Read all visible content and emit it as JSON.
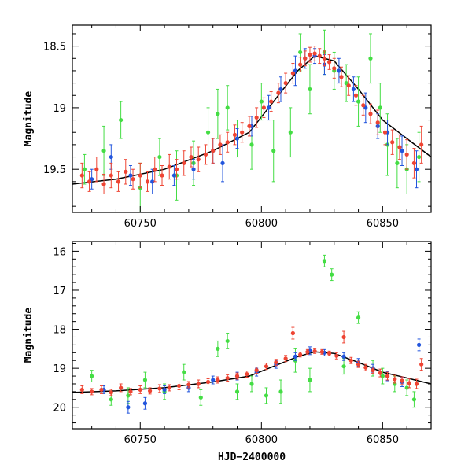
{
  "chart_data": [
    {
      "id": "top",
      "type": "scatter",
      "xlabel": "",
      "ylabel": "Magnitude",
      "xlim": [
        60722,
        60870
      ],
      "ylim": [
        19.85,
        18.33
      ],
      "y_inverted": true,
      "x_ticks": [
        60750,
        60800,
        60850
      ],
      "x_tick_labels": [
        "60750",
        "60800",
        "60850"
      ],
      "y_ticks": [
        18.5,
        19,
        19.5
      ],
      "y_tick_labels": [
        "18.5",
        "19",
        "19.5"
      ],
      "grid": false,
      "colors": {
        "green": "#44dd44",
        "blue": "#2255dd",
        "red": "#ee4433",
        "model": "#000000"
      },
      "model_curve": {
        "x": [
          60722,
          60740,
          60760,
          60780,
          60795,
          60805,
          60815,
          60822,
          60830,
          60840,
          60850,
          60860,
          60870
        ],
        "y": [
          19.62,
          19.58,
          19.5,
          19.35,
          19.2,
          18.95,
          18.7,
          18.58,
          18.62,
          18.85,
          19.1,
          19.25,
          19.4
        ]
      },
      "series": [
        {
          "color": "green",
          "points": [
            [
              60727,
              19.5,
              0.12
            ],
            [
              60735,
              19.35,
              0.2
            ],
            [
              60742,
              19.1,
              0.15
            ],
            [
              60750,
              19.65,
              0.2
            ],
            [
              60758,
              19.4,
              0.15
            ],
            [
              60765,
              19.55,
              0.2
            ],
            [
              60772,
              19.45,
              0.18
            ],
            [
              60778,
              19.2,
              0.2
            ],
            [
              60782,
              19.05,
              0.2
            ],
            [
              60786,
              19.0,
              0.18
            ],
            [
              60790,
              19.25,
              0.15
            ],
            [
              60796,
              19.3,
              0.2
            ],
            [
              60800,
              18.95,
              0.15
            ],
            [
              60805,
              19.35,
              0.25
            ],
            [
              60812,
              19.2,
              0.2
            ],
            [
              60816,
              18.55,
              0.15
            ],
            [
              60820,
              18.85,
              0.2
            ],
            [
              60826,
              18.55,
              0.18
            ],
            [
              60830,
              18.7,
              0.15
            ],
            [
              60835,
              18.8,
              0.15
            ],
            [
              60840,
              18.95,
              0.2
            ],
            [
              60845,
              18.6,
              0.2
            ],
            [
              60849,
              19.0,
              0.2
            ],
            [
              60852,
              19.3,
              0.25
            ],
            [
              60856,
              19.45,
              0.2
            ],
            [
              60860,
              19.5,
              0.2
            ],
            [
              60865,
              19.4,
              0.2
            ]
          ]
        },
        {
          "color": "blue",
          "points": [
            [
              60730,
              19.58,
              0.08
            ],
            [
              60738,
              19.4,
              0.1
            ],
            [
              60746,
              19.55,
              0.08
            ],
            [
              60755,
              19.6,
              0.1
            ],
            [
              60764,
              19.55,
              0.08
            ],
            [
              60772,
              19.5,
              0.08
            ],
            [
              60780,
              19.35,
              0.1
            ],
            [
              60784,
              19.45,
              0.15
            ],
            [
              60790,
              19.25,
              0.08
            ],
            [
              60796,
              19.15,
              0.08
            ],
            [
              60803,
              19.0,
              0.1
            ],
            [
              60808,
              18.85,
              0.1
            ],
            [
              60814,
              18.7,
              0.12
            ],
            [
              60818,
              18.6,
              0.08
            ],
            [
              60822,
              18.58,
              0.06
            ],
            [
              60826,
              18.65,
              0.08
            ],
            [
              60832,
              18.7,
              0.1
            ],
            [
              60838,
              18.85,
              0.1
            ],
            [
              60843,
              19.0,
              0.12
            ],
            [
              60848,
              19.15,
              0.1
            ],
            [
              60852,
              19.2,
              0.1
            ],
            [
              60858,
              19.35,
              0.12
            ],
            [
              60864,
              19.5,
              0.15
            ]
          ]
        },
        {
          "color": "red",
          "points": [
            [
              60726,
              19.55,
              0.1
            ],
            [
              60729,
              19.6,
              0.08
            ],
            [
              60732,
              19.5,
              0.1
            ],
            [
              60735,
              19.62,
              0.08
            ],
            [
              60738,
              19.55,
              0.1
            ],
            [
              60741,
              19.6,
              0.08
            ],
            [
              60744,
              19.52,
              0.1
            ],
            [
              60747,
              19.58,
              0.08
            ],
            [
              60750,
              19.55,
              0.1
            ],
            [
              60753,
              19.6,
              0.08
            ],
            [
              60756,
              19.5,
              0.1
            ],
            [
              60759,
              19.55,
              0.08
            ],
            [
              60762,
              19.48,
              0.1
            ],
            [
              60765,
              19.5,
              0.08
            ],
            [
              60768,
              19.45,
              0.1
            ],
            [
              60771,
              19.4,
              0.08
            ],
            [
              60774,
              19.42,
              0.1
            ],
            [
              60777,
              19.38,
              0.08
            ],
            [
              60780,
              19.35,
              0.1
            ],
            [
              60783,
              19.3,
              0.08
            ],
            [
              60786,
              19.28,
              0.08
            ],
            [
              60789,
              19.22,
              0.08
            ],
            [
              60792,
              19.2,
              0.08
            ],
            [
              60795,
              19.15,
              0.08
            ],
            [
              60798,
              19.08,
              0.08
            ],
            [
              60801,
              19.0,
              0.08
            ],
            [
              60804,
              18.95,
              0.08
            ],
            [
              60807,
              18.88,
              0.08
            ],
            [
              60810,
              18.8,
              0.08
            ],
            [
              60813,
              18.72,
              0.08
            ],
            [
              60816,
              18.65,
              0.06
            ],
            [
              60818,
              18.6,
              0.06
            ],
            [
              60820,
              18.57,
              0.06
            ],
            [
              60822,
              18.56,
              0.06
            ],
            [
              60824,
              18.58,
              0.06
            ],
            [
              60826,
              18.6,
              0.06
            ],
            [
              60828,
              18.63,
              0.06
            ],
            [
              60830,
              18.68,
              0.08
            ],
            [
              60833,
              18.75,
              0.08
            ],
            [
              60836,
              18.82,
              0.08
            ],
            [
              60839,
              18.9,
              0.08
            ],
            [
              60842,
              18.98,
              0.08
            ],
            [
              60845,
              19.05,
              0.08
            ],
            [
              60848,
              19.12,
              0.1
            ],
            [
              60851,
              19.2,
              0.1
            ],
            [
              60854,
              19.28,
              0.1
            ],
            [
              60857,
              19.32,
              0.1
            ],
            [
              60860,
              19.38,
              0.12
            ],
            [
              60863,
              19.45,
              0.12
            ],
            [
              60866,
              19.3,
              0.15
            ]
          ]
        }
      ]
    },
    {
      "id": "bottom",
      "type": "scatter",
      "xlabel": "HJD−2400000",
      "ylabel": "Magnitude",
      "xlim": [
        60722,
        60870
      ],
      "ylim": [
        20.55,
        15.75
      ],
      "y_inverted": true,
      "x_ticks": [
        60750,
        60800,
        60850
      ],
      "x_tick_labels": [
        "60750",
        "60800",
        "60850"
      ],
      "y_ticks": [
        16,
        17,
        18,
        19,
        20
      ],
      "y_tick_labels": [
        "16",
        "17",
        "18",
        "19",
        "20"
      ],
      "grid": false,
      "colors": {
        "green": "#44dd44",
        "blue": "#2255dd",
        "red": "#ee4433",
        "model": "#000000"
      },
      "model_curve": {
        "x": [
          60722,
          60740,
          60760,
          60780,
          60795,
          60805,
          60815,
          60822,
          60830,
          60840,
          60850,
          60860,
          60870
        ],
        "y": [
          19.62,
          19.58,
          19.5,
          19.35,
          19.2,
          18.95,
          18.7,
          18.58,
          18.62,
          18.85,
          19.1,
          19.25,
          19.4
        ]
      },
      "series": [
        {
          "color": "green",
          "points": [
            [
              60730,
              19.2,
              0.15
            ],
            [
              60738,
              19.8,
              0.15
            ],
            [
              60745,
              19.7,
              0.2
            ],
            [
              60752,
              19.3,
              0.2
            ],
            [
              60760,
              19.6,
              0.2
            ],
            [
              60768,
              19.1,
              0.2
            ],
            [
              60775,
              19.75,
              0.2
            ],
            [
              60782,
              18.5,
              0.2
            ],
            [
              60786,
              18.3,
              0.2
            ],
            [
              60790,
              19.6,
              0.2
            ],
            [
              60796,
              19.4,
              0.2
            ],
            [
              60802,
              19.7,
              0.2
            ],
            [
              60808,
              19.6,
              0.3
            ],
            [
              60814,
              18.8,
              0.3
            ],
            [
              60820,
              19.3,
              0.3
            ],
            [
              60826,
              16.25,
              0.15
            ],
            [
              60829,
              16.6,
              0.15
            ],
            [
              60834,
              18.95,
              0.2
            ],
            [
              60840,
              17.7,
              0.15
            ],
            [
              60846,
              19.0,
              0.2
            ],
            [
              60850,
              19.2,
              0.2
            ],
            [
              60855,
              19.4,
              0.2
            ],
            [
              60860,
              19.5,
              0.2
            ],
            [
              60863,
              19.8,
              0.2
            ]
          ]
        },
        {
          "color": "blue",
          "points": [
            [
              60735,
              19.55,
              0.1
            ],
            [
              60745,
              20.0,
              0.15
            ],
            [
              60752,
              19.9,
              0.15
            ],
            [
              60760,
              19.55,
              0.1
            ],
            [
              60770,
              19.5,
              0.1
            ],
            [
              60780,
              19.3,
              0.1
            ],
            [
              60790,
              19.2,
              0.1
            ],
            [
              60798,
              19.1,
              0.1
            ],
            [
              60806,
              18.9,
              0.1
            ],
            [
              60814,
              18.7,
              0.1
            ],
            [
              60820,
              18.55,
              0.1
            ],
            [
              60826,
              18.6,
              0.08
            ],
            [
              60834,
              18.7,
              0.1
            ],
            [
              60840,
              18.85,
              0.1
            ],
            [
              60846,
              19.0,
              0.1
            ],
            [
              60852,
              19.2,
              0.12
            ],
            [
              60858,
              19.35,
              0.12
            ],
            [
              60865,
              18.4,
              0.15
            ]
          ]
        },
        {
          "color": "red",
          "points": [
            [
              60726,
              19.55,
              0.1
            ],
            [
              60730,
              19.6,
              0.08
            ],
            [
              60734,
              19.55,
              0.1
            ],
            [
              60738,
              19.62,
              0.08
            ],
            [
              60742,
              19.5,
              0.1
            ],
            [
              60746,
              19.6,
              0.08
            ],
            [
              60750,
              19.55,
              0.1
            ],
            [
              60754,
              19.58,
              0.08
            ],
            [
              60758,
              19.52,
              0.1
            ],
            [
              60762,
              19.5,
              0.08
            ],
            [
              60766,
              19.45,
              0.1
            ],
            [
              60770,
              19.42,
              0.08
            ],
            [
              60774,
              19.4,
              0.1
            ],
            [
              60778,
              19.35,
              0.08
            ],
            [
              60782,
              19.3,
              0.08
            ],
            [
              60786,
              19.25,
              0.08
            ],
            [
              60790,
              19.2,
              0.08
            ],
            [
              60794,
              19.15,
              0.08
            ],
            [
              60798,
              19.05,
              0.08
            ],
            [
              60802,
              18.95,
              0.08
            ],
            [
              60806,
              18.85,
              0.08
            ],
            [
              60810,
              18.75,
              0.08
            ],
            [
              60813,
              18.1,
              0.15
            ],
            [
              60816,
              18.65,
              0.06
            ],
            [
              60819,
              18.58,
              0.06
            ],
            [
              60822,
              18.56,
              0.06
            ],
            [
              60825,
              18.58,
              0.06
            ],
            [
              60828,
              18.62,
              0.06
            ],
            [
              60831,
              18.68,
              0.08
            ],
            [
              60834,
              18.2,
              0.15
            ],
            [
              60837,
              18.8,
              0.08
            ],
            [
              60840,
              18.9,
              0.08
            ],
            [
              60843,
              18.98,
              0.08
            ],
            [
              60846,
              19.05,
              0.08
            ],
            [
              60849,
              19.12,
              0.1
            ],
            [
              60852,
              19.2,
              0.1
            ],
            [
              60855,
              19.28,
              0.1
            ],
            [
              60858,
              19.32,
              0.1
            ],
            [
              60861,
              19.38,
              0.12
            ],
            [
              60864,
              19.4,
              0.12
            ],
            [
              60866,
              18.9,
              0.15
            ]
          ]
        }
      ]
    }
  ]
}
